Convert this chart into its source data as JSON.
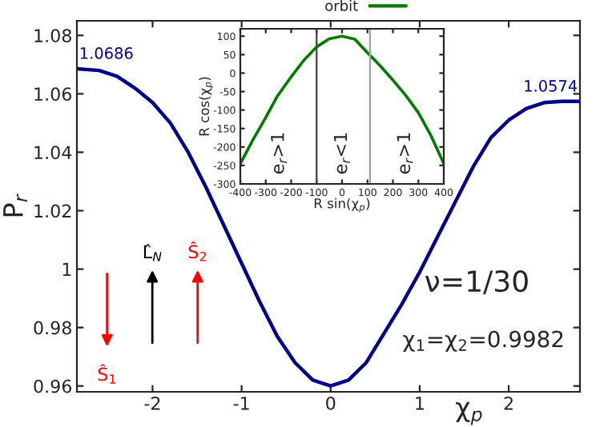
{
  "chart_data": [
    {
      "type": "line",
      "xlabel": "χ$_{p}$",
      "ylabel": "P$_{r}$",
      "xlim": [
        -2.85,
        2.8
      ],
      "ylim": [
        0.958,
        1.085
      ],
      "xticks": [
        -2,
        -1,
        0,
        1,
        2
      ],
      "yticks": [
        0.96,
        0.98,
        1,
        1.02,
        1.04,
        1.06,
        1.08
      ],
      "grid": false,
      "legend": false,
      "series": [
        {
          "color": "#00008b",
          "x": [
            -2.85,
            -2.6,
            -2.4,
            -2.2,
            -2.0,
            -1.8,
            -1.6,
            -1.4,
            -1.2,
            -1.0,
            -0.8,
            -0.6,
            -0.4,
            -0.2,
            0,
            0.2,
            0.4,
            0.6,
            0.8,
            1.0,
            1.2,
            1.4,
            1.6,
            1.8,
            2.0,
            2.2,
            2.4,
            2.6,
            2.8
          ],
          "values": [
            1.0686,
            1.068,
            1.066,
            1.062,
            1.057,
            1.05,
            1.04,
            1.028,
            1.015,
            1.002,
            0.989,
            0.977,
            0.968,
            0.962,
            0.96,
            0.962,
            0.968,
            0.978,
            0.988,
            0.999,
            1.011,
            1.023,
            1.035,
            1.045,
            1.051,
            1.055,
            1.057,
            1.0574,
            1.0574
          ]
        }
      ],
      "annotations": [
        {
          "text": "1.0686",
          "x": -2.85,
          "y": 1.0686
        },
        {
          "text": "1.0574",
          "x": 2.8,
          "y": 1.0574
        },
        "Ŝ$_{1}$",
        "L̂$_{N}$",
        "Ŝ$_{2}$",
        "ν=1/30",
        "χ$_{1}$=χ$_{2}$=0.9982"
      ]
    },
    {
      "type": "line",
      "xlabel": "R sin(χ$_{p}$)",
      "ylabel": "R cos(χ$_{p}$)",
      "xlim": [
        -400,
        400
      ],
      "ylim": [
        -300,
        120
      ],
      "xticks": [
        -400,
        -300,
        -200,
        -100,
        0,
        100,
        200,
        300,
        400
      ],
      "yticks": [
        -300,
        -250,
        -200,
        -150,
        -100,
        -50,
        0,
        50,
        100
      ],
      "grid": false,
      "legend": "top",
      "series": [
        {
          "name": "orbit",
          "color": "#007a00",
          "x": [
            -400,
            -350,
            -300,
            -255,
            -200,
            -150,
            -100,
            -50,
            0,
            50,
            100,
            150,
            200,
            250,
            300,
            350,
            400
          ],
          "values": [
            -245,
            -180,
            -120,
            -63,
            -10,
            35,
            71,
            93,
            100,
            92,
            55,
            20,
            -19,
            -60,
            -107,
            -170,
            -245
          ]
        }
      ],
      "ref_lines": [
        {
          "axis": "x",
          "value": -100,
          "color": "#404040"
        },
        {
          "axis": "x",
          "value": 110,
          "color": "#a0a0a0"
        }
      ],
      "annotations": [
        "e$_{r}$>1",
        "e$_{r}$<1",
        "e$_{r}$>1"
      ]
    }
  ]
}
